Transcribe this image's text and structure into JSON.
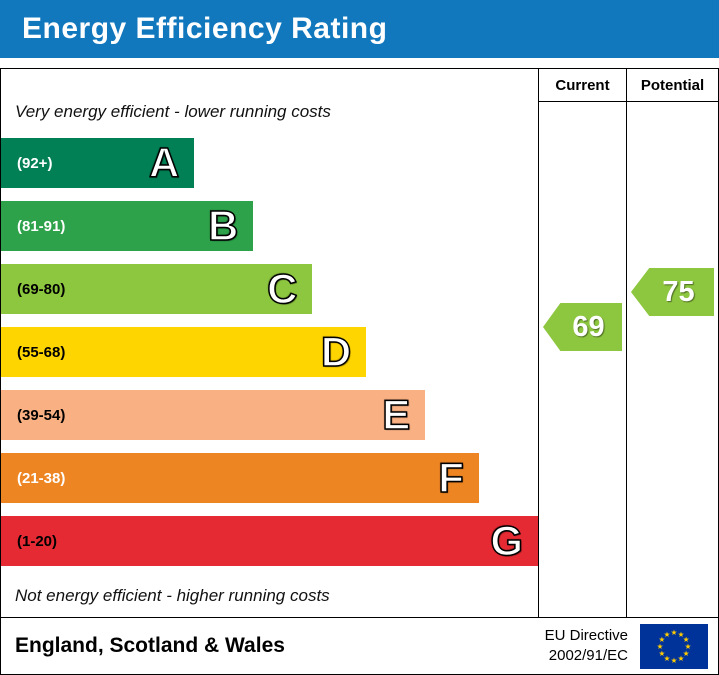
{
  "header": {
    "title": "Energy Efficiency Rating",
    "bg_color": "#1278be",
    "text_color": "#ffffff"
  },
  "columns": {
    "current_label": "Current",
    "potential_label": "Potential"
  },
  "notes": {
    "top": "Very energy efficient - lower running costs",
    "bottom": "Not energy efficient - higher running costs"
  },
  "bands": [
    {
      "letter": "A",
      "range": "(92+)",
      "color": "#008054",
      "width_pct": 36,
      "range_text_color": "#ffffff"
    },
    {
      "letter": "B",
      "range": "(81-91)",
      "color": "#2da24a",
      "width_pct": 47,
      "range_text_color": "#ffffff"
    },
    {
      "letter": "C",
      "range": "(69-80)",
      "color": "#8dc63f",
      "width_pct": 58,
      "range_text_color": "#000000"
    },
    {
      "letter": "D",
      "range": "(55-68)",
      "color": "#ffd500",
      "width_pct": 68,
      "range_text_color": "#000000"
    },
    {
      "letter": "E",
      "range": "(39-54)",
      "color": "#f9b083",
      "width_pct": 79,
      "range_text_color": "#000000"
    },
    {
      "letter": "F",
      "range": "(21-38)",
      "color": "#ee8523",
      "width_pct": 89,
      "range_text_color": "#ffffff"
    },
    {
      "letter": "G",
      "range": "(1-20)",
      "color": "#e52a33",
      "width_pct": 100,
      "range_text_color": "#000000"
    }
  ],
  "ratings": {
    "current": {
      "value": "69",
      "color": "#8dc63f"
    },
    "potential": {
      "value": "75",
      "color": "#8dc63f"
    }
  },
  "footer": {
    "region": "England, Scotland & Wales",
    "directive_line1": "EU Directive",
    "directive_line2": "2002/91/EC",
    "flag_colors": {
      "field": "#003399",
      "stars": "#ffcc00"
    }
  },
  "chart_data": {
    "type": "bar",
    "title": "Energy Efficiency Rating",
    "categories": [
      "A",
      "B",
      "C",
      "D",
      "E",
      "F",
      "G"
    ],
    "band_ranges": [
      "92+",
      "81-91",
      "69-80",
      "55-68",
      "39-54",
      "21-38",
      "1-20"
    ],
    "band_colors": [
      "#008054",
      "#2da24a",
      "#8dc63f",
      "#ffd500",
      "#f9b083",
      "#ee8523",
      "#e52a33"
    ],
    "bar_relative_widths_pct": [
      36,
      47,
      58,
      68,
      79,
      89,
      100
    ],
    "current_rating": 69,
    "potential_rating": 75,
    "rating_scale_min": 1,
    "rating_scale_max": 100,
    "legend_top": "Very energy efficient - lower running costs",
    "legend_bottom": "Not energy efficient - higher running costs"
  }
}
